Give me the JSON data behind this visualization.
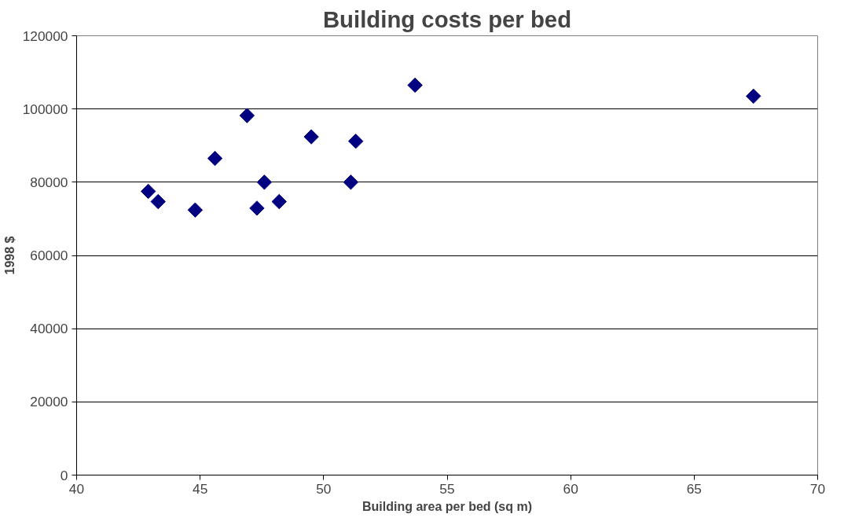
{
  "chart_data": {
    "type": "scatter",
    "title": "Building costs per bed",
    "xlabel": "Building area per bed (sq m)",
    "ylabel": "1998 $",
    "x": [
      42.9,
      43.3,
      44.8,
      45.6,
      46.9,
      47.3,
      47.6,
      48.2,
      49.5,
      51.1,
      51.3,
      53.7,
      67.4
    ],
    "values": [
      77500,
      74700,
      72400,
      86500,
      98200,
      72900,
      80000,
      74700,
      92400,
      80000,
      91200,
      106500,
      103500
    ],
    "color": "#000080",
    "marker": "diamond",
    "xlim": [
      40,
      70
    ],
    "xticks": [
      40,
      45,
      50,
      55,
      60,
      65,
      70
    ],
    "ylim": [
      0,
      120000
    ],
    "yticks": [
      0,
      20000,
      40000,
      60000,
      80000,
      100000,
      120000
    ],
    "grid": "y"
  }
}
